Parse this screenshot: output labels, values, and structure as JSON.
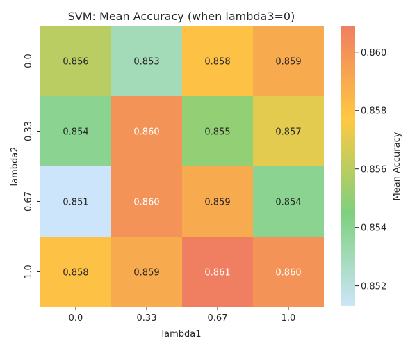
{
  "chart_data": {
    "type": "heatmap",
    "title": "SVM: Mean Accuracy (when lambda3=0)",
    "xlabel": "lambda1",
    "ylabel": "lambda2",
    "x_categories": [
      "0.0",
      "0.33",
      "0.67",
      "1.0"
    ],
    "y_categories": [
      "0.0",
      "0.33",
      "0.67",
      "1.0"
    ],
    "values": [
      [
        0.856,
        0.853,
        0.858,
        0.859
      ],
      [
        0.854,
        0.86,
        0.855,
        0.857
      ],
      [
        0.851,
        0.86,
        0.859,
        0.854
      ],
      [
        0.858,
        0.859,
        0.861,
        0.86
      ]
    ],
    "cell_labels": [
      [
        "0.856",
        "0.853",
        "0.858",
        "0.859"
      ],
      [
        "0.854",
        "0.860",
        "0.855",
        "0.857"
      ],
      [
        "0.851",
        "0.860",
        "0.859",
        "0.854"
      ],
      [
        "0.858",
        "0.859",
        "0.861",
        "0.860"
      ]
    ],
    "colorbar": {
      "label": "Mean Accuracy",
      "range": [
        0.8513,
        0.8609
      ],
      "ticks": [
        0.852,
        0.854,
        0.856,
        0.858,
        0.86
      ],
      "tick_labels": [
        "0.852",
        "0.854",
        "0.856",
        "0.858",
        "0.860"
      ],
      "colors": [
        "#cce5fa",
        "#7ed07e",
        "#fec942",
        "#f07e60"
      ]
    },
    "grid": false,
    "legend": "colorbar-right"
  }
}
